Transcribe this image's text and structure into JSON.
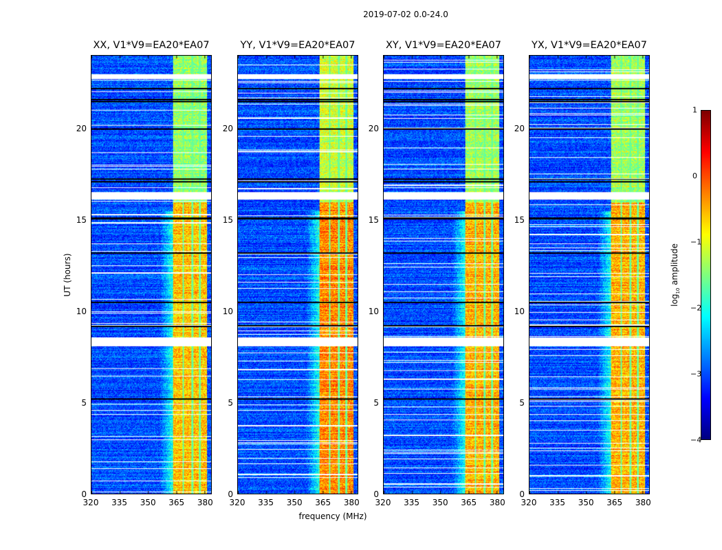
{
  "chart_data": {
    "type": "heatmap",
    "title": "2019-07-02 0.0-24.0",
    "xlabel": "frequency (MHz)",
    "ylabel": "UT (hours)",
    "xlim": [
      320,
      383.5
    ],
    "ylim": [
      0,
      24
    ],
    "xticks": [
      "320",
      "335",
      "350",
      "365",
      "380"
    ],
    "xtick_values": [
      320,
      335,
      350,
      365,
      380
    ],
    "yticks": [
      "0",
      "5",
      "10",
      "15",
      "20"
    ],
    "ytick_values": [
      0,
      5,
      10,
      15,
      20
    ],
    "colormap": "jet",
    "colorbar": {
      "label_prefix": "log",
      "label_sub": "10",
      "label_suffix": " amplitude",
      "range": [
        -4,
        1
      ],
      "ticks": [
        "1",
        "0",
        "−1",
        "−2",
        "−3",
        "−4"
      ],
      "tick_values": [
        1,
        0,
        -1,
        -2,
        -3,
        -4
      ]
    },
    "panels": [
      {
        "title": "XX, V1*V9=EA20*EA07",
        "background_level": -3.0,
        "band_level": -0.9
      },
      {
        "title": "YY, V1*V9=EA20*EA07",
        "background_level": -3.0,
        "band_level": -0.6
      },
      {
        "title": "XY, V1*V9=EA20*EA07",
        "background_level": -3.0,
        "band_level": -0.8
      },
      {
        "title": "YX, V1*V9=EA20*EA07",
        "background_level": -3.0,
        "band_level": -0.8
      }
    ],
    "signal_band_mhz": [
      363,
      381
    ],
    "band_subchannel_gaps_mhz": [
      368.5,
      373.5,
      377.5
    ],
    "flagged_gaps_hours": [
      [
        22.75,
        23.0
      ],
      [
        16.15,
        16.55
      ],
      [
        8.1,
        8.6
      ]
    ],
    "dropout_lines_hours": [
      22.2,
      21.6,
      21.5,
      20.0,
      17.25,
      17.1,
      15.1,
      13.2,
      10.5,
      9.2,
      5.2
    ]
  }
}
